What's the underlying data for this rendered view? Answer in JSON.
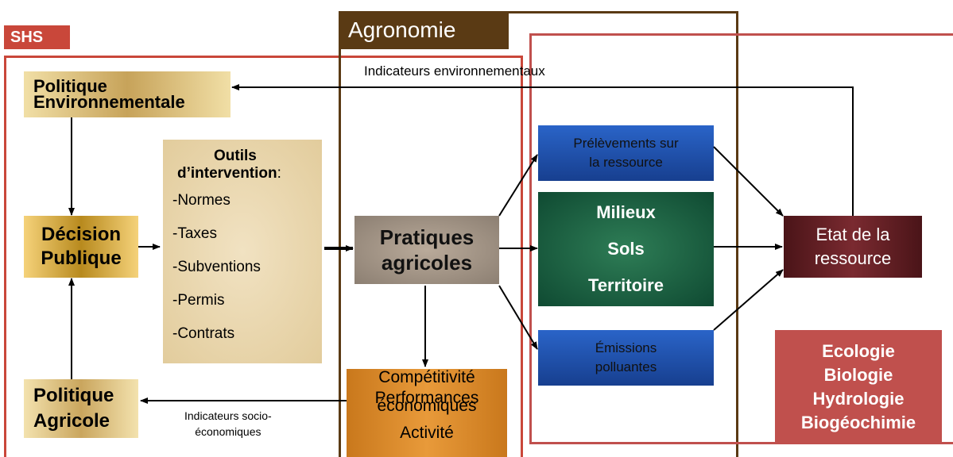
{
  "labels": {
    "shs": "SHS",
    "agronomie": "Agronomie"
  },
  "indicators": {
    "environmental": "Indicateurs environnementaux",
    "socio_economic": [
      "Indicateurs socio-",
      "économiques"
    ]
  },
  "nodes": {
    "politique_env": [
      "Politique",
      "Environnementale"
    ],
    "decision": [
      "Décision",
      "Publique"
    ],
    "politique_agr": [
      "Politique",
      "Agricole"
    ],
    "outils": {
      "title": [
        "Outils",
        "d’intervention"
      ],
      "colon": ":",
      "items": [
        "-Normes",
        "-Taxes",
        "-Subventions",
        "-Permis",
        "-Contrats"
      ]
    },
    "pratiques": [
      "Pratiques",
      "agricoles"
    ],
    "competitivite": [
      "Compétitivité",
      "Performances",
      "économiques",
      "Activité"
    ],
    "prelevements": [
      "Prélèvements sur",
      "la ressource"
    ],
    "milieux": [
      "Milieux",
      "Sols",
      "Territoire"
    ],
    "emissions": [
      "Émissions",
      "polluantes"
    ],
    "etat": [
      "Etat de la",
      "ressource"
    ],
    "disciplines": [
      "Ecologie",
      "Biologie",
      "Hydrologie",
      "Biogéochimie"
    ]
  }
}
